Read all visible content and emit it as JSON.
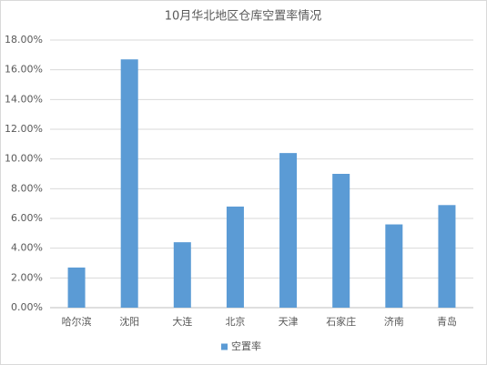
{
  "chart_data": {
    "type": "bar",
    "title": "10月华北地区仓库空置率情况",
    "categories": [
      "哈尔滨",
      "沈阳",
      "大连",
      "北京",
      "天津",
      "石家庄",
      "济南",
      "青岛"
    ],
    "series": [
      {
        "name": "空置率",
        "color": "#5b9bd5",
        "values": [
          2.7,
          16.7,
          4.4,
          6.8,
          10.4,
          9.0,
          5.6,
          6.9
        ]
      }
    ],
    "ylim": [
      0,
      18
    ],
    "yticks": [
      {
        "value": 0,
        "label": "0.00%"
      },
      {
        "value": 2,
        "label": "2.00%"
      },
      {
        "value": 4,
        "label": "4.00%"
      },
      {
        "value": 6,
        "label": "6.00%"
      },
      {
        "value": 8,
        "label": "8.00%"
      },
      {
        "value": 10,
        "label": "10.00%"
      },
      {
        "value": 12,
        "label": "12.00%"
      },
      {
        "value": 14,
        "label": "14.00%"
      },
      {
        "value": 16,
        "label": "16.00%"
      },
      {
        "value": 18,
        "label": "18.00%"
      }
    ],
    "grid": true,
    "legend": "bottom"
  }
}
